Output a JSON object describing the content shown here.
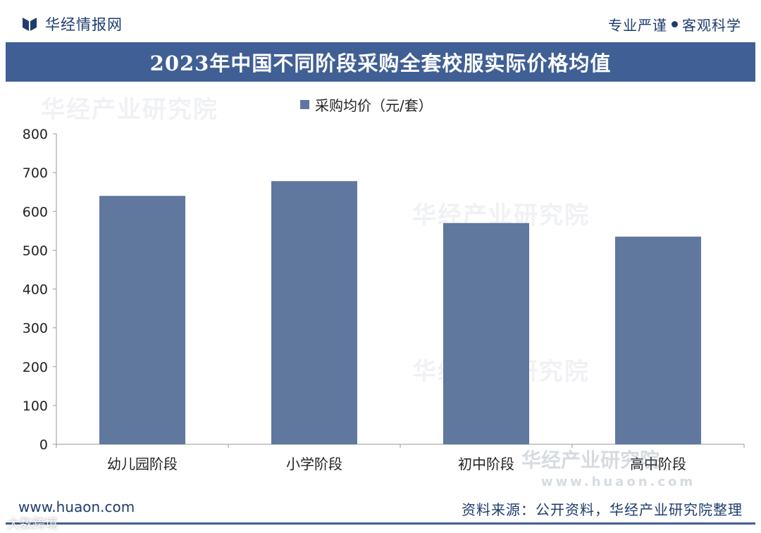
{
  "header": {
    "brand": "华经情报网",
    "slogan_left": "专业严谨",
    "slogan_right": "客观科学"
  },
  "title": "2023年中国不同阶段采购全套校服实际价格均值",
  "watermarks": {
    "institute": "华经产业研究院",
    "url": "www.huaon.com"
  },
  "footer": {
    "website": "www.huaon.com",
    "source": "资料来源：公开资料，华经产业研究院整理",
    "corner_tag": "大数跨境"
  },
  "colors": {
    "title_bar": "#3f5f95",
    "bar": "#60779e",
    "brand_text": "#1f3c6e"
  },
  "chart_data": {
    "type": "bar",
    "title": "2023年中国不同阶段采购全套校服实际价格均值",
    "categories": [
      "幼儿园阶段",
      "小学阶段",
      "初中阶段",
      "高中阶段"
    ],
    "series": [
      {
        "name": "采购均价（元/套）",
        "values": [
          640,
          678,
          570,
          535
        ]
      }
    ],
    "ylim": [
      0,
      800
    ],
    "yticks": [
      0,
      100,
      200,
      300,
      400,
      500,
      600,
      700,
      800
    ],
    "xlabel": "",
    "ylabel": "",
    "legend": "top-center",
    "grid": false
  }
}
